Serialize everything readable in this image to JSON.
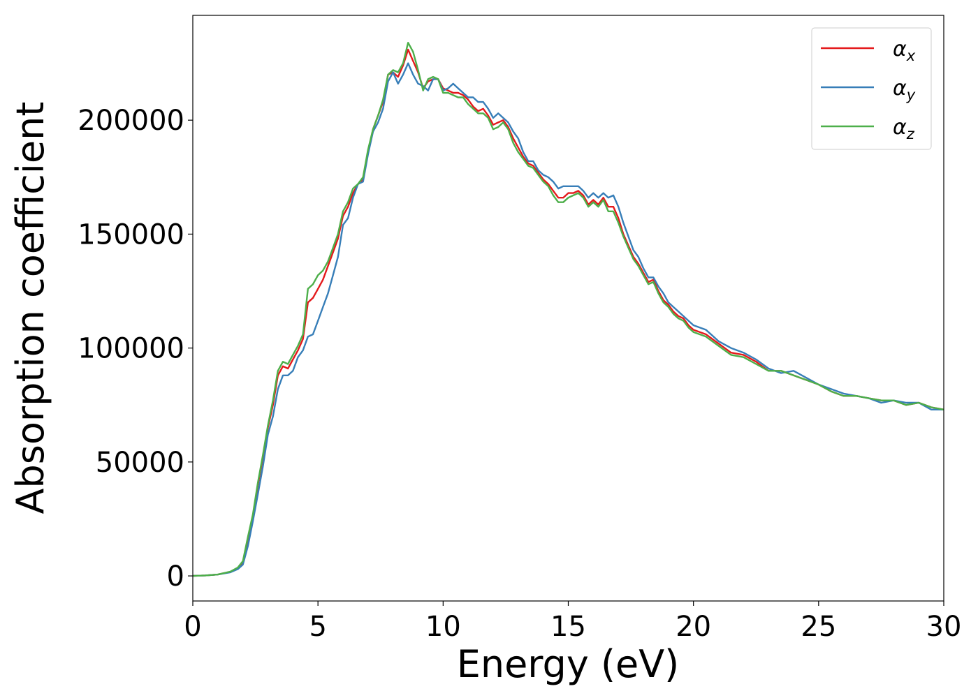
{
  "chart_data": {
    "type": "line",
    "xlabel": "Energy (eV)",
    "ylabel": "Absorption coefficient",
    "xlim": [
      0,
      30
    ],
    "ylim": [
      -11000,
      246000
    ],
    "xticks": [
      0,
      5,
      10,
      15,
      20,
      25,
      30
    ],
    "xtick_labels": [
      "0",
      "5",
      "10",
      "15",
      "20",
      "25",
      "30"
    ],
    "yticks": [
      0,
      50000,
      100000,
      150000,
      200000
    ],
    "ytick_labels": [
      "0",
      "50000",
      "100000",
      "150000",
      "200000"
    ],
    "grid": false,
    "legend_position": "top-right",
    "x": [
      0,
      0.5,
      1.0,
      1.5,
      1.8,
      2.0,
      2.2,
      2.4,
      2.6,
      2.8,
      3.0,
      3.2,
      3.4,
      3.6,
      3.8,
      4.0,
      4.2,
      4.4,
      4.6,
      4.8,
      5.0,
      5.2,
      5.4,
      5.6,
      5.8,
      6.0,
      6.2,
      6.4,
      6.6,
      6.8,
      7.0,
      7.2,
      7.4,
      7.6,
      7.8,
      8.0,
      8.2,
      8.4,
      8.6,
      8.8,
      9.0,
      9.2,
      9.4,
      9.6,
      9.8,
      10.0,
      10.2,
      10.4,
      10.6,
      10.8,
      11.0,
      11.2,
      11.4,
      11.6,
      11.8,
      12.0,
      12.2,
      12.4,
      12.6,
      12.8,
      13.0,
      13.2,
      13.4,
      13.6,
      13.8,
      14.0,
      14.2,
      14.4,
      14.6,
      14.8,
      15.0,
      15.2,
      15.4,
      15.6,
      15.8,
      16.0,
      16.2,
      16.4,
      16.6,
      16.8,
      17.0,
      17.2,
      17.4,
      17.6,
      17.8,
      18.0,
      18.2,
      18.4,
      18.6,
      18.8,
      19.0,
      19.2,
      19.4,
      19.6,
      19.8,
      20.0,
      20.5,
      21.0,
      21.5,
      22.0,
      22.5,
      23.0,
      23.5,
      24.0,
      24.5,
      25.0,
      25.5,
      26.0,
      26.5,
      27.0,
      27.5,
      28.0,
      28.5,
      29.0,
      29.5,
      30.0
    ],
    "series": [
      {
        "name": "αx",
        "label_main": "α",
        "label_sub": "x",
        "color": "#e41a1c",
        "y": [
          0,
          200,
          600,
          1800,
          3500,
          6000,
          16000,
          26000,
          40000,
          52000,
          65000,
          75000,
          88000,
          92000,
          91000,
          95000,
          99000,
          104000,
          120000,
          122000,
          126000,
          130000,
          136000,
          142000,
          148000,
          158000,
          162000,
          168000,
          172000,
          174000,
          186000,
          196000,
          202000,
          208000,
          220000,
          221000,
          219000,
          224000,
          231000,
          226000,
          221000,
          214000,
          217000,
          218000,
          218000,
          214000,
          213000,
          212000,
          212000,
          211000,
          209000,
          206000,
          204000,
          205000,
          202000,
          198000,
          199000,
          200000,
          197000,
          192000,
          188000,
          184000,
          181000,
          180000,
          177000,
          174000,
          172000,
          169000,
          166000,
          166000,
          168000,
          168000,
          169000,
          167000,
          163000,
          165000,
          163000,
          166000,
          162000,
          162000,
          157000,
          150000,
          145000,
          140000,
          137000,
          133000,
          129000,
          130000,
          125000,
          121000,
          119000,
          116000,
          114000,
          113000,
          110000,
          108000,
          106000,
          102000,
          98000,
          97000,
          94000,
          90000,
          90000,
          88000,
          86000,
          84000,
          81000,
          79000,
          79000,
          78000,
          77000,
          77000,
          75000,
          76000,
          74000,
          73000
        ]
      },
      {
        "name": "αy",
        "label_main": "α",
        "label_sub": "y",
        "color": "#377eb8",
        "y": [
          0,
          200,
          600,
          1600,
          3000,
          5000,
          13000,
          24000,
          36000,
          48000,
          62000,
          70000,
          82000,
          88000,
          88000,
          90000,
          96000,
          99000,
          105000,
          106000,
          112000,
          118000,
          124000,
          132000,
          140000,
          154000,
          157000,
          166000,
          172000,
          173000,
          185000,
          195000,
          199000,
          205000,
          217000,
          221000,
          216000,
          220000,
          225000,
          220000,
          216000,
          215000,
          213000,
          218000,
          218000,
          213000,
          214000,
          216000,
          214000,
          212000,
          210000,
          210000,
          208000,
          208000,
          205000,
          201000,
          203000,
          201000,
          199000,
          195000,
          192000,
          186000,
          182000,
          182000,
          178000,
          176000,
          175000,
          173000,
          170000,
          171000,
          171000,
          171000,
          171000,
          169000,
          166000,
          168000,
          166000,
          168000,
          166000,
          167000,
          162000,
          155000,
          149000,
          143000,
          140000,
          135000,
          131000,
          131000,
          127000,
          124000,
          120000,
          118000,
          116000,
          114000,
          112000,
          110000,
          108000,
          103000,
          100000,
          98000,
          95000,
          91000,
          89000,
          90000,
          87000,
          84000,
          82000,
          80000,
          79000,
          78000,
          76000,
          77000,
          76000,
          76000,
          73000,
          73000
        ]
      },
      {
        "name": "αz",
        "label_main": "α",
        "label_sub": "z",
        "color": "#4daf4a",
        "y": [
          0,
          200,
          600,
          1900,
          3700,
          6500,
          17000,
          27000,
          41000,
          53000,
          66000,
          77000,
          90000,
          94000,
          93000,
          97000,
          101000,
          106000,
          126000,
          128000,
          132000,
          134000,
          138000,
          144000,
          150000,
          160000,
          164000,
          170000,
          172000,
          175000,
          187000,
          196000,
          202000,
          209000,
          220000,
          222000,
          221000,
          225000,
          234000,
          230000,
          222000,
          213000,
          218000,
          219000,
          218000,
          212000,
          212000,
          211000,
          210000,
          210000,
          207000,
          205000,
          203000,
          203000,
          201000,
          196000,
          197000,
          199000,
          196000,
          190000,
          186000,
          183000,
          180000,
          179000,
          176000,
          173000,
          171000,
          167000,
          164000,
          164000,
          166000,
          167000,
          168000,
          166000,
          162000,
          164000,
          162000,
          165000,
          160000,
          160000,
          155000,
          149000,
          144000,
          139000,
          136000,
          132000,
          128000,
          129000,
          124000,
          120000,
          118000,
          115000,
          113000,
          112000,
          109000,
          107000,
          105000,
          101000,
          97000,
          96000,
          93000,
          90000,
          90000,
          88000,
          86000,
          84000,
          81000,
          79000,
          79000,
          78000,
          77000,
          77000,
          75000,
          76000,
          74000,
          73000
        ]
      }
    ]
  }
}
